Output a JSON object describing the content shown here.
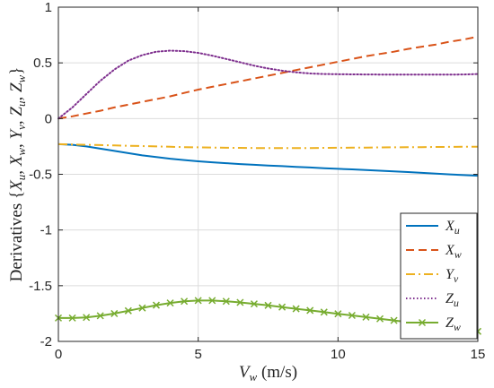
{
  "chart_data": {
    "type": "line",
    "title": "",
    "xlabel": "V_w (m/s)",
    "ylabel": "Derivatives {X_u, X_w, Y_v, Z_u, Z_w}",
    "xlim": [
      0,
      15
    ],
    "ylim": [
      -2,
      1
    ],
    "xticks": [
      0,
      5,
      10,
      15
    ],
    "yticks": [
      -2,
      -1.5,
      -1,
      -0.5,
      0,
      0.5,
      1
    ],
    "xtick_labels": [
      "0",
      "5",
      "10",
      "15"
    ],
    "ytick_labels": [
      "-2",
      "-1.5",
      "-1",
      "-0.5",
      "0",
      "0.5",
      "1"
    ],
    "grid": true,
    "legend_position": "bottom-right",
    "x": [
      0,
      0.5,
      1,
      1.5,
      2,
      2.5,
      3,
      3.5,
      4,
      4.5,
      5,
      5.5,
      6,
      6.5,
      7,
      7.5,
      8,
      8.5,
      9,
      9.5,
      10,
      10.5,
      11,
      11.5,
      12,
      12.5,
      13,
      13.5,
      14,
      14.5,
      15
    ],
    "series": [
      {
        "name": "X_u",
        "name_main": "X",
        "name_sub": "u",
        "color": "#0072BD",
        "dash": "solid",
        "marker": "none",
        "values": [
          -0.23,
          -0.235,
          -0.25,
          -0.27,
          -0.29,
          -0.31,
          -0.33,
          -0.345,
          -0.36,
          -0.372,
          -0.383,
          -0.392,
          -0.4,
          -0.408,
          -0.415,
          -0.421,
          -0.427,
          -0.433,
          -0.439,
          -0.445,
          -0.451,
          -0.456,
          -0.462,
          -0.468,
          -0.474,
          -0.48,
          -0.487,
          -0.494,
          -0.501,
          -0.507,
          -0.513
        ]
      },
      {
        "name": "X_w",
        "name_main": "X",
        "name_sub": "w",
        "color": "#D95319",
        "dash": "dashed",
        "marker": "none",
        "values": [
          0,
          0.02,
          0.045,
          0.07,
          0.1,
          0.125,
          0.15,
          0.175,
          0.2,
          0.23,
          0.26,
          0.285,
          0.31,
          0.335,
          0.36,
          0.385,
          0.41,
          0.435,
          0.46,
          0.485,
          0.51,
          0.535,
          0.56,
          0.58,
          0.6,
          0.625,
          0.645,
          0.665,
          0.69,
          0.71,
          0.735
        ]
      },
      {
        "name": "Y_v",
        "name_main": "Y",
        "name_sub": "v",
        "color": "#EDB120",
        "dash": "dashdot",
        "marker": "none",
        "values": [
          -0.23,
          -0.232,
          -0.235,
          -0.238,
          -0.241,
          -0.244,
          -0.247,
          -0.25,
          -0.253,
          -0.256,
          -0.258,
          -0.26,
          -0.262,
          -0.263,
          -0.264,
          -0.265,
          -0.265,
          -0.265,
          -0.264,
          -0.263,
          -0.262,
          -0.261,
          -0.26,
          -0.259,
          -0.258,
          -0.257,
          -0.256,
          -0.255,
          -0.254,
          -0.253,
          -0.252
        ]
      },
      {
        "name": "Z_u",
        "name_main": "Z",
        "name_sub": "u",
        "color": "#7E2F8E",
        "dash": "dotted",
        "marker": "none",
        "values": [
          0,
          0.1,
          0.22,
          0.34,
          0.44,
          0.52,
          0.57,
          0.6,
          0.61,
          0.605,
          0.59,
          0.565,
          0.535,
          0.505,
          0.475,
          0.45,
          0.43,
          0.415,
          0.405,
          0.4,
          0.398,
          0.397,
          0.396,
          0.395,
          0.395,
          0.394,
          0.394,
          0.394,
          0.394,
          0.396,
          0.4
        ]
      },
      {
        "name": "Z_w",
        "name_main": "Z",
        "name_sub": "w",
        "color": "#77AC30",
        "dash": "solid",
        "marker": "x",
        "values": [
          -1.79,
          -1.79,
          -1.785,
          -1.77,
          -1.75,
          -1.725,
          -1.7,
          -1.675,
          -1.655,
          -1.64,
          -1.633,
          -1.633,
          -1.64,
          -1.65,
          -1.663,
          -1.677,
          -1.692,
          -1.707,
          -1.722,
          -1.737,
          -1.752,
          -1.767,
          -1.782,
          -1.797,
          -1.812,
          -1.827,
          -1.842,
          -1.857,
          -1.872,
          -1.89,
          -1.91
        ]
      }
    ]
  }
}
